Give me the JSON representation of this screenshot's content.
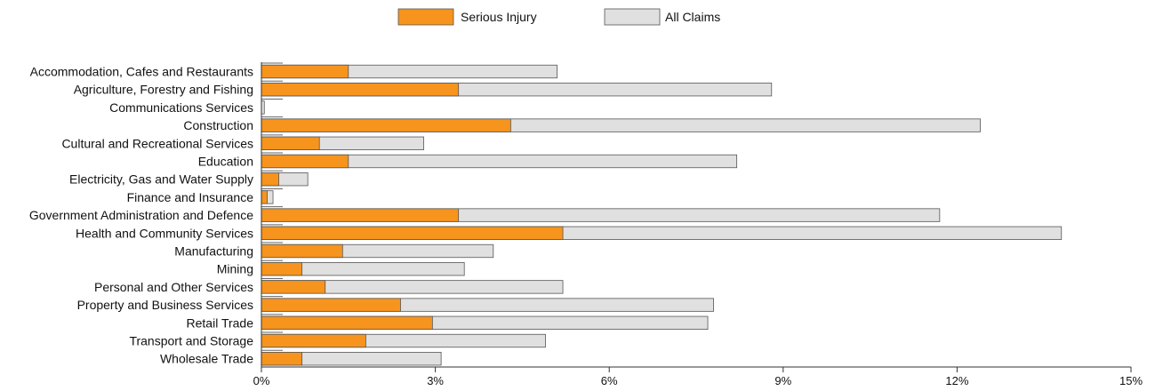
{
  "chart_data": {
    "type": "bar",
    "orientation": "horizontal",
    "categories": [
      "Accommodation, Cafes and Restaurants",
      "Agriculture, Forestry and Fishing",
      "Communications Services",
      "Construction",
      "Cultural and Recreational Services",
      "Education",
      "Electricity, Gas and Water Supply",
      "Finance and Insurance",
      "Government Administration and Defence",
      "Health and Community Services",
      "Manufacturing",
      "Mining",
      "Personal and Other Services",
      "Property and Business Services",
      "Retail Trade",
      "Transport and Storage",
      "Wholesale Trade"
    ],
    "series": [
      {
        "name": "Serious Injury",
        "color": "#f7941d",
        "values": [
          1.5,
          3.4,
          0.0,
          4.3,
          1.0,
          1.5,
          0.3,
          0.1,
          3.4,
          5.2,
          1.4,
          0.7,
          1.1,
          2.4,
          2.95,
          1.8,
          0.7
        ]
      },
      {
        "name": "All Claims",
        "color": "#e0e0e0",
        "values": [
          5.1,
          8.8,
          0.05,
          12.4,
          2.8,
          8.2,
          0.8,
          0.2,
          11.7,
          13.8,
          4.0,
          3.5,
          5.2,
          7.8,
          7.7,
          4.9,
          3.1
        ]
      }
    ],
    "overlap": true,
    "xlim": [
      0,
      15
    ],
    "xticks": [
      0,
      3,
      6,
      9,
      12,
      15
    ],
    "xtick_labels": [
      "0%",
      "3%",
      "6%",
      "9%",
      "12%",
      "15%"
    ],
    "legend_position": "top-center",
    "grid": false,
    "title": "",
    "xlabel": "",
    "ylabel": ""
  }
}
